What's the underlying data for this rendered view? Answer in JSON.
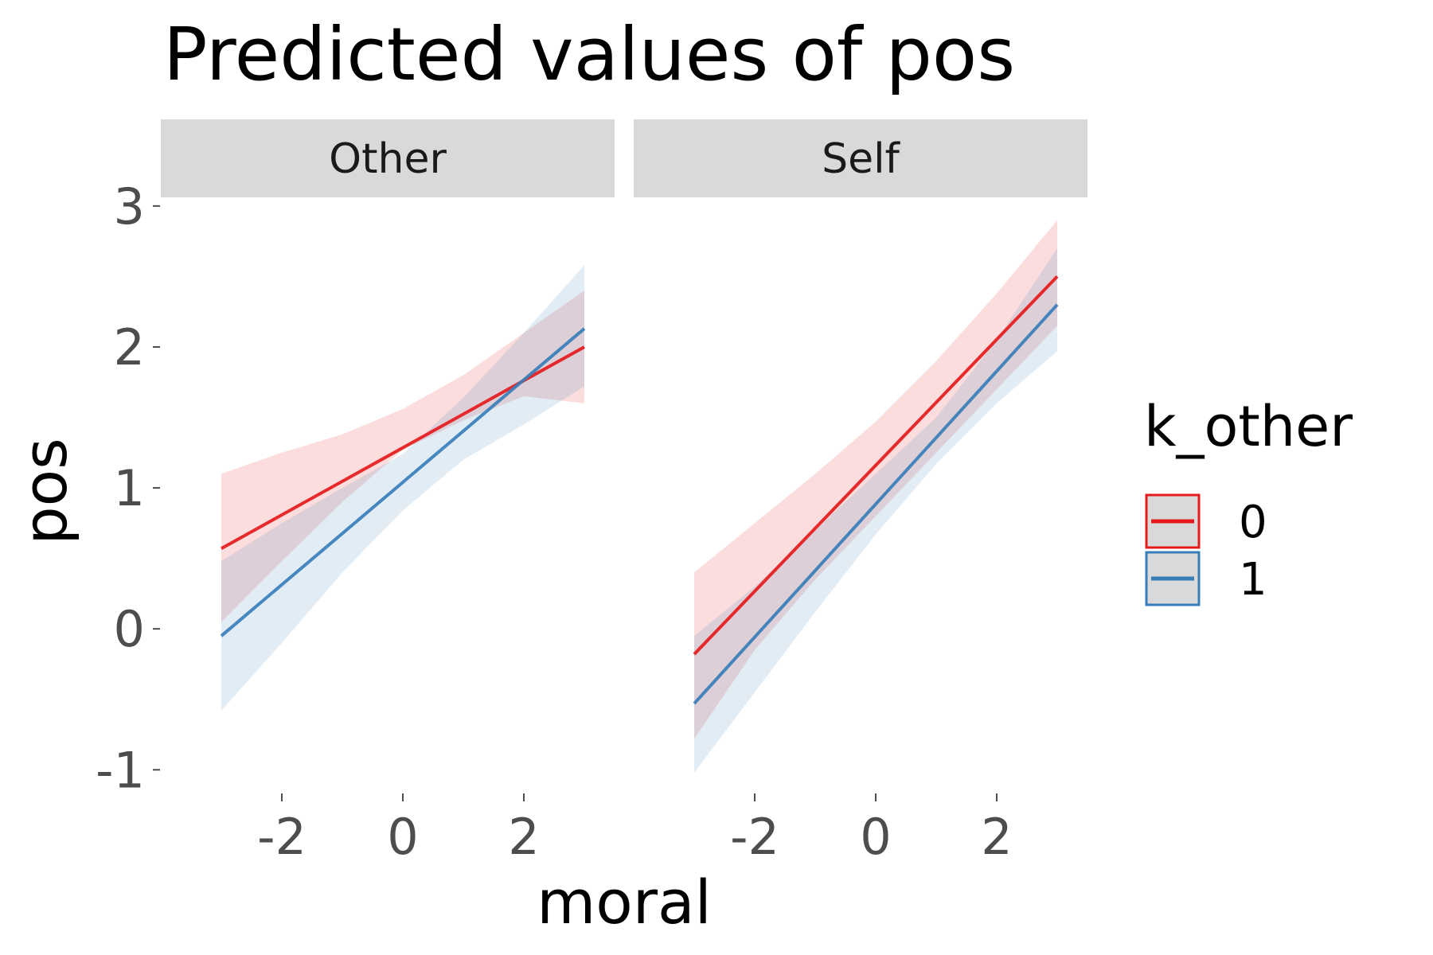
{
  "chart_data": {
    "type": "line",
    "title": "Predicted values of pos",
    "xlabel": "moral",
    "ylabel": "pos",
    "xlim": [
      -4.0,
      3.5
    ],
    "ylim": [
      -1.1,
      3.05
    ],
    "xticks": [
      -2,
      0,
      2
    ],
    "xtick_labels": [
      "-2",
      "0",
      "2"
    ],
    "yticks": [
      -1,
      0,
      1,
      2,
      3
    ],
    "ytick_labels": [
      "-1",
      "0",
      "1",
      "2",
      "3"
    ],
    "legend": {
      "title": "k_other",
      "position": "right",
      "entries": [
        {
          "label": "0",
          "color": "#e41a1c"
        },
        {
          "label": "1",
          "color": "#377eb8"
        }
      ]
    },
    "band_opacity": 0.15,
    "panels": [
      {
        "strip": "Other",
        "series": [
          {
            "name": "0",
            "color": "#e41a1c",
            "x": [
              -3,
              3
            ],
            "y": [
              0.57,
              2.0
            ],
            "ci_x": [
              -3,
              -2,
              -1,
              0,
              1,
              2,
              3
            ],
            "ci_lower": [
              0.05,
              0.48,
              0.9,
              1.27,
              1.48,
              1.65,
              1.6
            ],
            "ci_upper": [
              1.1,
              1.25,
              1.38,
              1.56,
              1.8,
              2.1,
              2.4
            ]
          },
          {
            "name": "1",
            "color": "#377eb8",
            "x": [
              -3,
              3
            ],
            "y": [
              -0.05,
              2.13
            ],
            "ci_x": [
              -3,
              -2,
              -1,
              0,
              1,
              2,
              3
            ],
            "ci_lower": [
              -0.58,
              -0.1,
              0.4,
              0.84,
              1.2,
              1.45,
              1.72
            ],
            "ci_upper": [
              0.48,
              0.75,
              1.0,
              1.24,
              1.64,
              2.1,
              2.58
            ]
          }
        ]
      },
      {
        "strip": "Self",
        "series": [
          {
            "name": "0",
            "color": "#e41a1c",
            "x": [
              -3,
              3
            ],
            "y": [
              -0.18,
              2.5
            ],
            "ci_x": [
              -3,
              -2,
              -1,
              0,
              1,
              2,
              3
            ],
            "ci_lower": [
              -0.78,
              -0.15,
              0.35,
              0.8,
              1.25,
              1.7,
              2.15
            ],
            "ci_upper": [
              0.4,
              0.75,
              1.1,
              1.47,
              1.9,
              2.38,
              2.9
            ]
          },
          {
            "name": "1",
            "color": "#377eb8",
            "x": [
              -3,
              3
            ],
            "y": [
              -0.53,
              2.3
            ],
            "ci_x": [
              -3,
              -2,
              -1,
              0,
              1,
              2,
              3
            ],
            "ci_lower": [
              -1.02,
              -0.45,
              0.12,
              0.67,
              1.17,
              1.6,
              1.97
            ],
            "ci_upper": [
              -0.05,
              0.3,
              0.7,
              1.1,
              1.5,
              2.05,
              2.7
            ]
          }
        ]
      }
    ]
  }
}
